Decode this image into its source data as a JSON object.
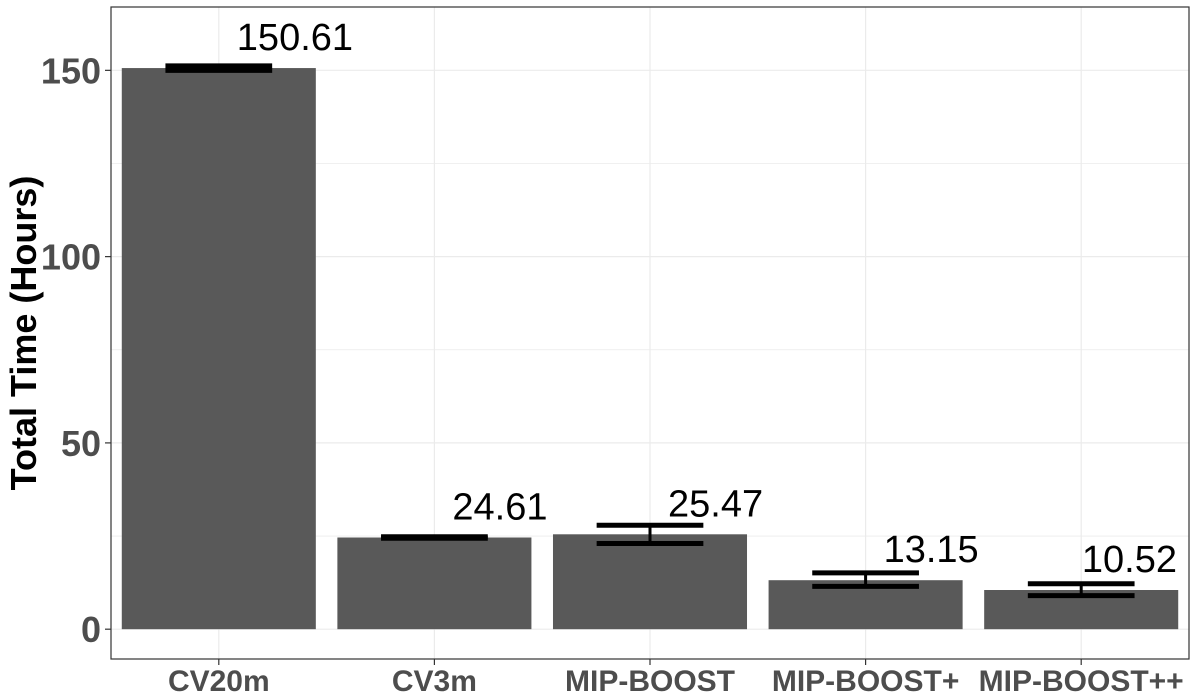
{
  "chart_data": {
    "type": "bar",
    "title": "",
    "xlabel": "",
    "ylabel": "Total Time (Hours)",
    "ylim": [
      -8,
      167
    ],
    "yticks": [
      0,
      50,
      100,
      150
    ],
    "grid": true,
    "categories": [
      "CV20m",
      "CV3m",
      "MIP-BOOST",
      "MIP-BOOST+",
      "MIP-BOOST++"
    ],
    "values": [
      150.61,
      24.61,
      25.47,
      13.15,
      10.52
    ],
    "labels": [
      "150.61",
      "24.61",
      "25.47",
      "13.15",
      "10.52"
    ],
    "error_low": [
      150.0,
      24.4,
      23.0,
      11.5,
      9.0
    ],
    "error_high": [
      151.2,
      24.8,
      27.9,
      15.1,
      12.2
    ],
    "bar_color": "#595959",
    "errorbar_color": "#000000"
  }
}
